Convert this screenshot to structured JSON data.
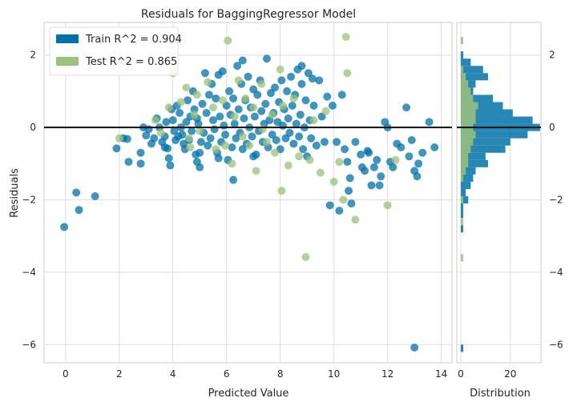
{
  "chart_data": [
    {
      "type": "scatter",
      "title": "Residuals for BaggingRegressor Model",
      "xlabel": "Predicted Value",
      "ylabel": "Residuals",
      "xlim": [
        -0.8,
        14.4
      ],
      "ylim": [
        -6.5,
        2.9
      ],
      "xticks": [
        0,
        2,
        4,
        6,
        8,
        10,
        12,
        14
      ],
      "yticks": [
        -6,
        -4,
        -2,
        0,
        2
      ],
      "grid": true,
      "legend_position": "top-left",
      "legend": [
        {
          "label": "Train R^2 = 0.904",
          "color": "#0072a8"
        },
        {
          "label": "Test R^2 = 0.865",
          "color": "#9cc279"
        }
      ],
      "series": [
        {
          "name": "Train",
          "color": "#0072a8",
          "points": [
            [
              -0.05,
              -2.75
            ],
            [
              0.4,
              -1.8
            ],
            [
              0.5,
              -2.28
            ],
            [
              1.1,
              -1.9
            ],
            [
              1.9,
              -0.58
            ],
            [
              2.15,
              -0.3
            ],
            [
              2.3,
              -0.32
            ],
            [
              2.35,
              -0.95
            ],
            [
              2.8,
              -0.7
            ],
            [
              2.8,
              -1.0
            ],
            [
              2.9,
              0.0
            ],
            [
              3.0,
              -0.22
            ],
            [
              3.1,
              -0.05
            ],
            [
              3.2,
              -0.45
            ],
            [
              3.3,
              -0.3
            ],
            [
              3.4,
              0.25
            ],
            [
              3.5,
              0.0
            ],
            [
              3.6,
              -0.4
            ],
            [
              3.7,
              -0.55
            ],
            [
              3.7,
              -0.25
            ],
            [
              3.75,
              0.15
            ],
            [
              3.8,
              -0.58
            ],
            [
              3.85,
              -0.85
            ],
            [
              3.9,
              -1.05
            ],
            [
              3.95,
              0.5
            ],
            [
              4.0,
              0.2
            ],
            [
              4.05,
              -0.1
            ],
            [
              4.1,
              -0.35
            ],
            [
              4.15,
              0.6
            ],
            [
              4.2,
              -0.25
            ],
            [
              4.25,
              0.4
            ],
            [
              4.3,
              0.0
            ],
            [
              4.35,
              -0.2
            ],
            [
              4.4,
              -0.45
            ],
            [
              4.45,
              -0.6
            ],
            [
              4.5,
              0.15
            ],
            [
              4.55,
              0.75
            ],
            [
              4.6,
              -0.35
            ],
            [
              4.65,
              0.3
            ],
            [
              4.7,
              -0.1
            ],
            [
              4.75,
              1.0
            ],
            [
              4.8,
              0.5
            ],
            [
              4.85,
              -0.75
            ],
            [
              4.9,
              0.25
            ],
            [
              4.95,
              0.1
            ],
            [
              5.0,
              -1.1
            ],
            [
              5.05,
              -0.4
            ],
            [
              5.1,
              0.65
            ],
            [
              5.15,
              -0.15
            ],
            [
              5.2,
              1.5
            ],
            [
              5.25,
              0.4
            ],
            [
              5.3,
              -0.5
            ],
            [
              5.35,
              0.9
            ],
            [
              5.4,
              -0.3
            ],
            [
              5.45,
              1.2
            ],
            [
              5.5,
              0.2
            ],
            [
              5.55,
              -0.05
            ],
            [
              5.6,
              0.8
            ],
            [
              5.65,
              -0.7
            ],
            [
              5.7,
              1.45
            ],
            [
              5.75,
              0.3
            ],
            [
              5.8,
              -0.4
            ],
            [
              5.85,
              1.55
            ],
            [
              5.9,
              0.05
            ],
            [
              5.95,
              -0.2
            ],
            [
              6.0,
              0.6
            ],
            [
              6.05,
              -0.9
            ],
            [
              6.1,
              1.0
            ],
            [
              6.15,
              0.35
            ],
            [
              6.2,
              -0.55
            ],
            [
              6.25,
              0.8
            ],
            [
              6.3,
              0.1
            ],
            [
              6.35,
              -0.3
            ],
            [
              6.4,
              1.7
            ],
            [
              6.45,
              0.5
            ],
            [
              6.5,
              -0.15
            ],
            [
              6.55,
              1.2
            ],
            [
              6.6,
              -0.6
            ],
            [
              6.65,
              0.25
            ],
            [
              6.7,
              0.75
            ],
            [
              6.75,
              -0.45
            ],
            [
              6.8,
              1.4
            ],
            [
              6.85,
              0.0
            ],
            [
              6.9,
              0.55
            ],
            [
              6.95,
              -0.25
            ],
            [
              7.0,
              1.05
            ],
            [
              7.05,
              0.3
            ],
            [
              7.1,
              -0.75
            ],
            [
              7.15,
              0.9
            ],
            [
              7.2,
              -0.1
            ],
            [
              7.25,
              1.3
            ],
            [
              7.3,
              0.45
            ],
            [
              7.35,
              -0.4
            ],
            [
              7.4,
              0.1
            ],
            [
              7.45,
              0.65
            ],
            [
              7.5,
              1.9
            ],
            [
              7.55,
              -0.55
            ],
            [
              7.6,
              0.2
            ],
            [
              7.65,
              0.95
            ],
            [
              7.7,
              -0.2
            ],
            [
              7.75,
              0.4
            ],
            [
              7.8,
              1.1
            ],
            [
              7.85,
              -0.35
            ],
            [
              7.9,
              0.15
            ],
            [
              7.95,
              0.7
            ],
            [
              8.0,
              -0.6
            ],
            [
              8.05,
              1.3
            ],
            [
              8.1,
              0.05
            ],
            [
              8.15,
              0.5
            ],
            [
              8.2,
              -0.3
            ],
            [
              8.25,
              1.0
            ],
            [
              8.3,
              0.25
            ],
            [
              8.35,
              -0.15
            ],
            [
              8.4,
              1.4
            ],
            [
              8.45,
              0.6
            ],
            [
              8.5,
              -0.45
            ],
            [
              8.55,
              0.9
            ],
            [
              8.6,
              0.1
            ],
            [
              8.65,
              1.6
            ],
            [
              8.7,
              -0.25
            ],
            [
              8.75,
              0.35
            ],
            [
              8.8,
              1.2
            ],
            [
              8.85,
              -0.6
            ],
            [
              8.9,
              0.0
            ],
            [
              8.95,
              0.75
            ],
            [
              9.0,
              -0.8
            ],
            [
              9.05,
              1.5
            ],
            [
              9.1,
              0.2
            ],
            [
              9.15,
              -0.3
            ],
            [
              9.25,
              0.6
            ],
            [
              9.35,
              -0.5
            ],
            [
              9.45,
              1.3
            ],
            [
              9.55,
              0.3
            ],
            [
              9.65,
              -0.4
            ],
            [
              9.75,
              0.85
            ],
            [
              9.85,
              -2.15
            ],
            [
              9.95,
              0.6
            ],
            [
              10.1,
              -0.4
            ],
            [
              10.2,
              -2.3
            ],
            [
              10.3,
              0.9
            ],
            [
              10.4,
              -0.6
            ],
            [
              10.5,
              -0.95
            ],
            [
              10.55,
              -1.75
            ],
            [
              10.6,
              -1.4
            ],
            [
              10.65,
              -2.1
            ],
            [
              10.8,
              -0.4
            ],
            [
              11.0,
              -0.75
            ],
            [
              11.05,
              -1.1
            ],
            [
              11.15,
              -1.2
            ],
            [
              11.25,
              -0.65
            ],
            [
              11.3,
              -0.7
            ],
            [
              11.4,
              -1.6
            ],
            [
              11.5,
              -1.1
            ],
            [
              11.6,
              -0.9
            ],
            [
              11.7,
              -1.6
            ],
            [
              11.75,
              -1.35
            ],
            [
              11.9,
              0.15
            ],
            [
              12.0,
              0.0
            ],
            [
              12.1,
              -0.95
            ],
            [
              12.2,
              -1.1
            ],
            [
              12.35,
              -0.45
            ],
            [
              12.5,
              -0.55
            ],
            [
              12.7,
              0.55
            ],
            [
              12.9,
              -0.35
            ],
            [
              13.0,
              -6.08
            ],
            [
              13.1,
              -1.35
            ],
            [
              13.15,
              -1.0
            ],
            [
              13.3,
              -0.7
            ],
            [
              13.55,
              0.15
            ],
            [
              13.75,
              -0.55
            ],
            [
              4.9,
              -0.95
            ],
            [
              5.7,
              -0.85
            ],
            [
              6.25,
              -1.45
            ],
            [
              6.6,
              1.85
            ],
            [
              7.0,
              -0.8
            ],
            [
              8.8,
              1.7
            ],
            [
              9.2,
              1.35
            ],
            [
              12.8,
              -0.8
            ],
            [
              13.0,
              -1.2
            ],
            [
              5.0,
              -0.7
            ]
          ]
        },
        {
          "name": "Test",
          "color": "#9cc279",
          "points": [
            [
              2.0,
              -0.3
            ],
            [
              3.35,
              0.2
            ],
            [
              3.55,
              -0.15
            ],
            [
              3.85,
              0.55
            ],
            [
              4.0,
              1.5
            ],
            [
              4.3,
              0.7
            ],
            [
              4.5,
              1.1
            ],
            [
              4.6,
              -0.3
            ],
            [
              4.8,
              0.35
            ],
            [
              4.9,
              0.9
            ],
            [
              5.0,
              -0.1
            ],
            [
              5.3,
              1.25
            ],
            [
              5.5,
              0.55
            ],
            [
              5.6,
              -0.6
            ],
            [
              5.85,
              0.75
            ],
            [
              6.05,
              2.4
            ],
            [
              6.2,
              -1.0
            ],
            [
              6.3,
              0.3
            ],
            [
              6.45,
              1.3
            ],
            [
              6.6,
              -0.25
            ],
            [
              6.7,
              0.8
            ],
            [
              6.85,
              -0.5
            ],
            [
              7.0,
              0.55
            ],
            [
              7.1,
              -1.2
            ],
            [
              7.3,
              1.2
            ],
            [
              7.5,
              -0.4
            ],
            [
              7.7,
              0.35
            ],
            [
              7.8,
              -0.7
            ],
            [
              8.0,
              1.6
            ],
            [
              8.1,
              0.6
            ],
            [
              8.3,
              -1.05
            ],
            [
              8.5,
              0.8
            ],
            [
              8.7,
              -0.8
            ],
            [
              8.95,
              -3.58
            ],
            [
              9.1,
              -0.9
            ],
            [
              9.25,
              0.2
            ],
            [
              9.5,
              -1.25
            ],
            [
              9.7,
              0.45
            ],
            [
              10.0,
              -1.5
            ],
            [
              10.2,
              -0.95
            ],
            [
              10.35,
              -2.0
            ],
            [
              10.45,
              2.5
            ],
            [
              10.5,
              1.5
            ],
            [
              10.8,
              -2.55
            ],
            [
              12.0,
              -2.15
            ],
            [
              12.3,
              -0.9
            ],
            [
              8.05,
              -1.75
            ],
            [
              5.95,
              -0.5
            ],
            [
              7.35,
              -0.05
            ],
            [
              4.65,
              -0.55
            ]
          ]
        }
      ]
    },
    {
      "type": "bar",
      "orientation": "horizontal",
      "xlabel": "Distribution",
      "xticks": [
        0,
        20
      ],
      "xlim": [
        0,
        34
      ],
      "series": [
        {
          "name": "Train",
          "color": "#0072a8",
          "bins": [
            [
              2.0,
              1
            ],
            [
              1.8,
              4
            ],
            [
              1.6,
              9
            ],
            [
              1.4,
              11
            ],
            [
              1.2,
              6
            ],
            [
              1.0,
              5
            ],
            [
              0.8,
              13
            ],
            [
              0.6,
              17
            ],
            [
              0.4,
              21
            ],
            [
              0.2,
              29
            ],
            [
              0.0,
              32
            ],
            [
              -0.2,
              27
            ],
            [
              -0.4,
              20
            ],
            [
              -0.6,
              18
            ],
            [
              -0.8,
              10
            ],
            [
              -1.0,
              11
            ],
            [
              -1.2,
              6
            ],
            [
              -1.4,
              5
            ],
            [
              -1.6,
              4
            ],
            [
              -1.8,
              2
            ],
            [
              -2.0,
              3
            ],
            [
              -2.2,
              1
            ],
            [
              -2.4,
              1
            ],
            [
              -2.8,
              1
            ],
            [
              -6.1,
              1
            ]
          ]
        },
        {
          "name": "Test",
          "color": "#9cc279",
          "bins": [
            [
              2.4,
              1
            ],
            [
              1.6,
              1
            ],
            [
              1.4,
              2
            ],
            [
              1.2,
              3
            ],
            [
              1.0,
              4
            ],
            [
              0.8,
              5
            ],
            [
              0.6,
              7
            ],
            [
              0.4,
              6
            ],
            [
              0.2,
              6
            ],
            [
              0.0,
              5
            ],
            [
              -0.2,
              6
            ],
            [
              -0.4,
              5
            ],
            [
              -0.6,
              4
            ],
            [
              -0.8,
              3
            ],
            [
              -1.0,
              3
            ],
            [
              -1.2,
              2
            ],
            [
              -1.4,
              1
            ],
            [
              -2.0,
              1
            ],
            [
              -2.6,
              1
            ],
            [
              -3.6,
              1
            ]
          ]
        }
      ]
    }
  ]
}
